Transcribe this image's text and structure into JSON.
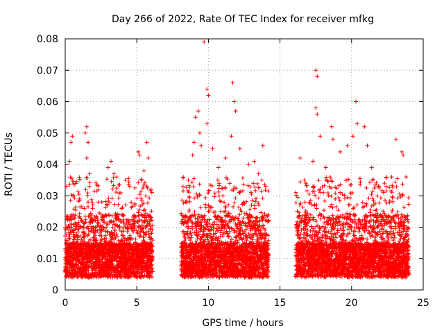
{
  "chart_data": {
    "type": "scatter",
    "title": "Day 266 of 2022, Rate Of TEC Index for receiver mfkg",
    "xlabel": "GPS time / hours",
    "ylabel": "ROTI / TECUs",
    "xlim": [
      0,
      25
    ],
    "ylim": [
      0,
      0.08
    ],
    "xticks": [
      0,
      5,
      10,
      15,
      20,
      25
    ],
    "xtick_labels": [
      "0",
      "5",
      "10",
      "15",
      "20",
      "25"
    ],
    "yticks": [
      0,
      0.01,
      0.02,
      0.03,
      0.04,
      0.05,
      0.06,
      0.07,
      0.08
    ],
    "ytick_labels": [
      "0",
      "0.01",
      "0.02",
      "0.03",
      "0.04",
      "0.05",
      "0.06",
      "0.07",
      "0.08"
    ],
    "grid": true,
    "marker": "+",
    "color": "#ff0000",
    "series": [
      {
        "name": "ROTI",
        "segments": [
          {
            "x_start": 0.0,
            "x_end": 6.1
          },
          {
            "x_start": 8.1,
            "x_end": 14.2
          },
          {
            "x_start": 16.1,
            "x_end": 24.0
          }
        ],
        "points": [
          {
            "x": 0.1,
            "y": 0.033
          },
          {
            "x": 0.3,
            "y": 0.041
          },
          {
            "x": 0.4,
            "y": 0.047
          },
          {
            "x": 0.5,
            "y": 0.049
          },
          {
            "x": 0.6,
            "y": 0.034
          },
          {
            "x": 1.0,
            "y": 0.029
          },
          {
            "x": 1.4,
            "y": 0.05
          },
          {
            "x": 1.5,
            "y": 0.052
          },
          {
            "x": 1.6,
            "y": 0.047
          },
          {
            "x": 1.5,
            "y": 0.042
          },
          {
            "x": 1.7,
            "y": 0.037
          },
          {
            "x": 2.3,
            "y": 0.028
          },
          {
            "x": 3.0,
            "y": 0.039
          },
          {
            "x": 3.2,
            "y": 0.041
          },
          {
            "x": 3.4,
            "y": 0.037
          },
          {
            "x": 3.6,
            "y": 0.036
          },
          {
            "x": 4.2,
            "y": 0.035
          },
          {
            "x": 4.5,
            "y": 0.033
          },
          {
            "x": 5.1,
            "y": 0.044
          },
          {
            "x": 5.2,
            "y": 0.043
          },
          {
            "x": 5.5,
            "y": 0.038
          },
          {
            "x": 5.7,
            "y": 0.047
          },
          {
            "x": 5.8,
            "y": 0.042
          },
          {
            "x": 6.0,
            "y": 0.032
          },
          {
            "x": 8.4,
            "y": 0.028
          },
          {
            "x": 8.6,
            "y": 0.035
          },
          {
            "x": 8.9,
            "y": 0.043
          },
          {
            "x": 9.0,
            "y": 0.047
          },
          {
            "x": 9.1,
            "y": 0.055
          },
          {
            "x": 9.3,
            "y": 0.057
          },
          {
            "x": 9.4,
            "y": 0.05
          },
          {
            "x": 9.5,
            "y": 0.046
          },
          {
            "x": 9.7,
            "y": 0.079
          },
          {
            "x": 9.9,
            "y": 0.064
          },
          {
            "x": 10.0,
            "y": 0.062
          },
          {
            "x": 9.9,
            "y": 0.053
          },
          {
            "x": 10.3,
            "y": 0.045
          },
          {
            "x": 10.7,
            "y": 0.039
          },
          {
            "x": 11.2,
            "y": 0.042
          },
          {
            "x": 11.6,
            "y": 0.049
          },
          {
            "x": 11.7,
            "y": 0.066
          },
          {
            "x": 11.8,
            "y": 0.06
          },
          {
            "x": 11.9,
            "y": 0.057
          },
          {
            "x": 12.2,
            "y": 0.045
          },
          {
            "x": 12.8,
            "y": 0.04
          },
          {
            "x": 13.2,
            "y": 0.041
          },
          {
            "x": 13.5,
            "y": 0.037
          },
          {
            "x": 13.8,
            "y": 0.046
          },
          {
            "x": 14.0,
            "y": 0.033
          },
          {
            "x": 16.4,
            "y": 0.042
          },
          {
            "x": 16.8,
            "y": 0.034
          },
          {
            "x": 17.3,
            "y": 0.041
          },
          {
            "x": 17.5,
            "y": 0.07
          },
          {
            "x": 17.6,
            "y": 0.068
          },
          {
            "x": 17.5,
            "y": 0.058
          },
          {
            "x": 17.6,
            "y": 0.056
          },
          {
            "x": 17.8,
            "y": 0.049
          },
          {
            "x": 18.2,
            "y": 0.039
          },
          {
            "x": 18.6,
            "y": 0.052
          },
          {
            "x": 18.7,
            "y": 0.048
          },
          {
            "x": 19.2,
            "y": 0.044
          },
          {
            "x": 19.7,
            "y": 0.046
          },
          {
            "x": 20.1,
            "y": 0.049
          },
          {
            "x": 20.3,
            "y": 0.06
          },
          {
            "x": 20.4,
            "y": 0.053
          },
          {
            "x": 20.9,
            "y": 0.052
          },
          {
            "x": 21.1,
            "y": 0.046
          },
          {
            "x": 21.4,
            "y": 0.039
          },
          {
            "x": 21.9,
            "y": 0.033
          },
          {
            "x": 22.3,
            "y": 0.034
          },
          {
            "x": 22.8,
            "y": 0.036
          },
          {
            "x": 23.1,
            "y": 0.048
          },
          {
            "x": 23.5,
            "y": 0.044
          },
          {
            "x": 23.6,
            "y": 0.043
          },
          {
            "x": 23.8,
            "y": 0.036
          }
        ]
      }
    ]
  }
}
